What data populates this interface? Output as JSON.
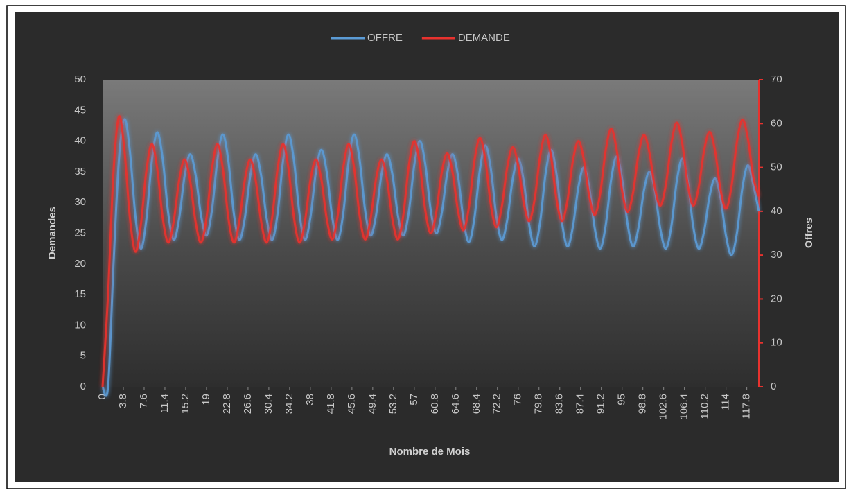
{
  "chart_data": {
    "type": "line",
    "x_label": "Nombre de Mois",
    "y_label": "Demandes",
    "y2_label": "Offres",
    "x": [
      0,
      1,
      2,
      3,
      4,
      5,
      6,
      7,
      8,
      9,
      10,
      11,
      12,
      13,
      14,
      15,
      16,
      17,
      18,
      19,
      20,
      21,
      22,
      23,
      24,
      25,
      26,
      27,
      28,
      29,
      30,
      31,
      32,
      33,
      34,
      35,
      36,
      37,
      38,
      39,
      40,
      41,
      42,
      43,
      44,
      45,
      46,
      47,
      48,
      49,
      50,
      51,
      52,
      53,
      54,
      55,
      56,
      57,
      58,
      59,
      60,
      61,
      62,
      63,
      64,
      65,
      66,
      67,
      68,
      69,
      70,
      71,
      72,
      73,
      74,
      75,
      76,
      77,
      78,
      79,
      80,
      81,
      82,
      83,
      84,
      85,
      86,
      87,
      88,
      89,
      90,
      91,
      92,
      93,
      94,
      95,
      96,
      97,
      98,
      99,
      100,
      101,
      102,
      103,
      104,
      105,
      106,
      107,
      108,
      109,
      110,
      111,
      112,
      113,
      114,
      115,
      116,
      117,
      118,
      119,
      120
    ],
    "xlim": [
      0,
      120
    ],
    "xticks": [
      0,
      3.8,
      7.6,
      11.4,
      15.2,
      19,
      22.8,
      26.6,
      30.4,
      34.2,
      38,
      41.8,
      45.6,
      49.4,
      53.2,
      57,
      60.8,
      64.6,
      68.4,
      72.2,
      76,
      79.8,
      83.6,
      87.4,
      91.2,
      95,
      98.8,
      102.6,
      106.4,
      110.2,
      114,
      117.8
    ],
    "ylim": [
      0,
      50
    ],
    "yticks": [
      0,
      5,
      10,
      15,
      20,
      25,
      30,
      35,
      40,
      45,
      50
    ],
    "y2lim": [
      0,
      70
    ],
    "y2ticks": [
      0,
      10,
      20,
      30,
      40,
      50,
      60,
      70
    ],
    "legend": "top",
    "series": [
      {
        "name": "OFFRE",
        "color": "#5b9bd5",
        "axis": "y2",
        "values": [
          0,
          0,
          28,
          52,
          61,
          53.6,
          38.9,
          31.5,
          38.1,
          51.4,
          58,
          51.9,
          39.6,
          33.5,
          38.4,
          48.1,
          53,
          48.4,
          39.1,
          34.5,
          40.3,
          51.8,
          57.5,
          51.5,
          39.5,
          33.5,
          38.4,
          48.1,
          53,
          48.1,
          38.4,
          33.5,
          39.5,
          51.5,
          57.5,
          51.5,
          39.5,
          33.5,
          38.6,
          48.9,
          54,
          48.9,
          38.6,
          33.5,
          39.5,
          51.5,
          57.5,
          51.8,
          40.3,
          34.5,
          39.1,
          48.4,
          53,
          48.4,
          39.1,
          34.5,
          39.9,
          50.6,
          56,
          50.8,
          40.3,
          35,
          39.5,
          48.5,
          53,
          48,
          38,
          33,
          38.5,
          49.5,
          55,
          49.6,
          38.9,
          33.5,
          38.1,
          47.4,
          52,
          47,
          37,
          32,
          37.5,
          48.5,
          54,
          48.5,
          37.5,
          32,
          36.5,
          45.5,
          50,
          45.4,
          36.1,
          31.5,
          36.8,
          47.3,
          52.5,
          47.4,
          37.1,
          32,
          36.3,
          44.8,
          49,
          44.6,
          35.9,
          31.5,
          36.6,
          46.9,
          52,
          46.9,
          36.6,
          31.5,
          35.5,
          43.5,
          47.5,
          43.1,
          34.4,
          30,
          35.1,
          45.4,
          50.5,
          46,
          40
        ]
      },
      {
        "name": "DEMANDE",
        "color": "#e8322e",
        "axis": "y",
        "values": [
          0,
          15,
          35,
          44,
          38.5,
          27.5,
          22,
          26.4,
          35.1,
          39.5,
          35.5,
          27.5,
          23.5,
          26.9,
          33.6,
          37,
          33.6,
          26.9,
          23.5,
          27.5,
          35.5,
          39.5,
          35.5,
          27.5,
          23.5,
          26.9,
          33.6,
          37,
          33.6,
          26.9,
          23.5,
          27.5,
          35.5,
          39.5,
          35.5,
          27.5,
          23.5,
          26.9,
          33.6,
          37,
          33.8,
          27.3,
          24,
          27.9,
          35.6,
          39.5,
          35.6,
          27.9,
          24,
          27.3,
          33.8,
          37,
          33.8,
          27.3,
          24,
          28,
          36,
          40,
          36.3,
          28.8,
          25,
          28.3,
          34.8,
          38,
          34.9,
          28.6,
          25.5,
          29.3,
          36.8,
          40.5,
          36.9,
          29.6,
          26,
          29.3,
          35.8,
          39,
          36,
          30,
          27,
          30.5,
          37.5,
          41,
          37.5,
          30.5,
          27,
          30.3,
          36.8,
          40,
          37,
          31,
          28,
          31.5,
          38.5,
          42,
          38.6,
          31.9,
          28.5,
          31.6,
          37.9,
          41,
          38.1,
          32.4,
          29.5,
          32.9,
          39.6,
          43,
          39.6,
          32.9,
          29.5,
          32.5,
          38.5,
          41.5,
          38.4,
          32.1,
          29,
          32.6,
          39.9,
          43.5,
          40.4,
          34.1,
          31
        ]
      }
    ]
  }
}
